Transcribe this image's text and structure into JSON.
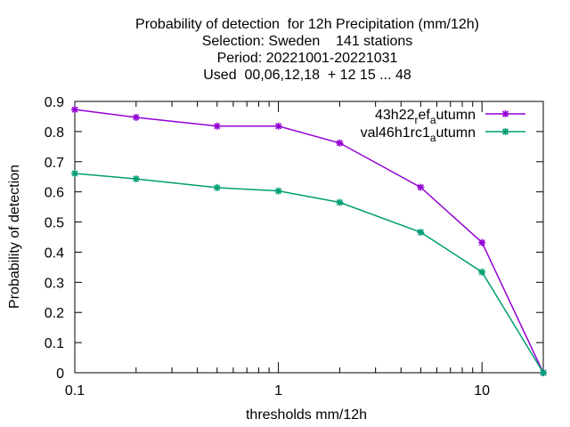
{
  "chart_data": {
    "type": "line",
    "title_lines": [
      "Probability of detection  for 12h Precipitation (mm/12h)",
      "Selection: Sweden    141 stations",
      "Period: 20221001-20221031",
      "Used  00,06,12,18  + 12 15 ... 48"
    ],
    "xlabel": "thresholds mm/12h",
    "ylabel": "Probability of detection",
    "xscale": "log",
    "xlim": [
      0.1,
      20
    ],
    "ylim": [
      0,
      0.9
    ],
    "x_tick_labels": [
      "0.1",
      "1",
      "10"
    ],
    "y_tick_labels": [
      "0",
      "0.1",
      "0.2",
      "0.3",
      "0.4",
      "0.5",
      "0.6",
      "0.7",
      "0.8",
      "0.9"
    ],
    "legend_position": "top-right",
    "grid": false,
    "x": [
      0.1,
      0.2,
      0.5,
      1,
      2,
      5,
      10,
      20
    ],
    "series": [
      {
        "name_parts": [
          "43h22",
          "r",
          "ef",
          "a",
          "utumn"
        ],
        "color": "#9400d3",
        "values": [
          0.873,
          0.847,
          0.818,
          0.818,
          0.762,
          0.615,
          0.432,
          0.0
        ]
      },
      {
        "name_parts": [
          "val46h1rc1",
          "a",
          "utumn"
        ],
        "color": "#009e73",
        "values": [
          0.661,
          0.643,
          0.614,
          0.603,
          0.565,
          0.466,
          0.334,
          0.0
        ]
      }
    ]
  }
}
